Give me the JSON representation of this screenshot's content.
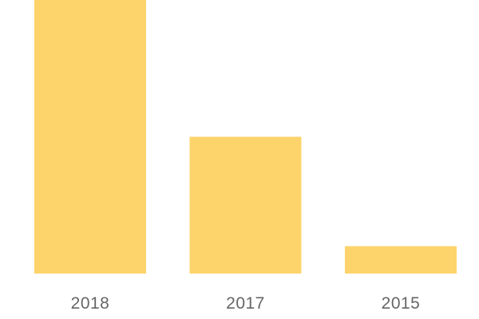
{
  "chart_data": {
    "type": "bar",
    "title": "",
    "xlabel": "",
    "ylabel": "",
    "categories": [
      "2018",
      "2017",
      "2015"
    ],
    "values": [
      100,
      50,
      10
    ],
    "ylim": [
      0,
      100
    ],
    "grid": false,
    "legend": "none",
    "colors": {
      "bar": "#FDD46B",
      "tick_label": "#666666"
    }
  }
}
